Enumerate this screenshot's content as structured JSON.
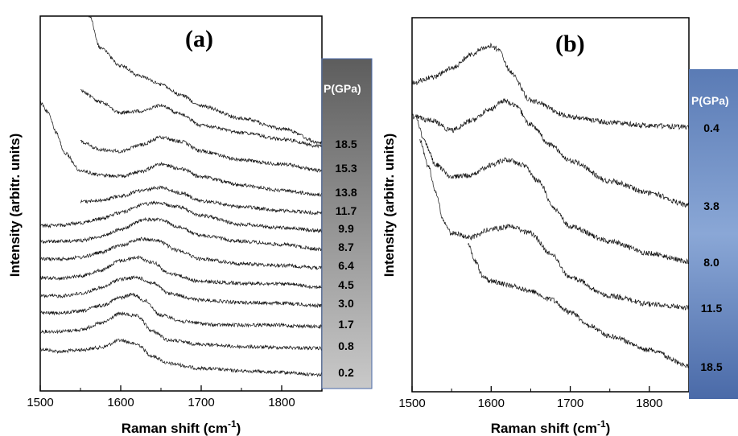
{
  "chart_data": [
    {
      "type": "line",
      "panel_label": "(a)",
      "xlabel": "Raman shift (cm",
      "xlabel_sup": "-1",
      "xlabel_end": ")",
      "ylabel": "Intensity (arbitr. units)",
      "xlim": [
        1500,
        1850
      ],
      "x_ticks": [
        "1500",
        "1600",
        "1700",
        "1800"
      ],
      "pressure_header": "P(GPa)",
      "legend_style": "gradient-bar-right",
      "series": [
        {
          "name": "0.2",
          "x": [
            1500,
            1525,
            1550,
            1575,
            1600,
            1620,
            1640,
            1660,
            1700,
            1750,
            1800,
            1850
          ],
          "y": [
            434,
            437,
            435,
            432,
            423,
            428,
            443,
            452,
            458,
            461,
            463,
            466
          ]
        },
        {
          "name": "0.8",
          "x": [
            1500,
            1525,
            1550,
            1575,
            1600,
            1620,
            1640,
            1660,
            1700,
            1750,
            1800,
            1850
          ],
          "y": [
            412,
            412,
            410,
            402,
            390,
            393,
            412,
            423,
            428,
            431,
            432,
            433
          ]
        },
        {
          "name": "1.7",
          "x": [
            1500,
            1525,
            1550,
            1575,
            1600,
            1615,
            1630,
            1650,
            1680,
            1720,
            1780,
            1850
          ],
          "y": [
            389,
            389,
            387,
            380,
            370,
            366,
            374,
            392,
            400,
            404,
            404,
            406
          ]
        },
        {
          "name": "3.0",
          "x": [
            1500,
            1525,
            1550,
            1575,
            1600,
            1620,
            1640,
            1660,
            1700,
            1750,
            1800,
            1850
          ],
          "y": [
            368,
            368,
            365,
            358,
            347,
            345,
            352,
            365,
            373,
            376,
            377,
            380
          ]
        },
        {
          "name": "4.5",
          "x": [
            1500,
            1525,
            1550,
            1575,
            1600,
            1620,
            1640,
            1660,
            1700,
            1750,
            1800,
            1850
          ],
          "y": [
            345,
            346,
            343,
            336,
            324,
            320,
            326,
            340,
            350,
            352,
            353,
            357
          ]
        },
        {
          "name": "6.4",
          "x": [
            1500,
            1525,
            1550,
            1575,
            1600,
            1625,
            1645,
            1670,
            1700,
            1750,
            1800,
            1850
          ],
          "y": [
            322,
            322,
            320,
            314,
            305,
            297,
            299,
            311,
            322,
            328,
            330,
            333
          ]
        },
        {
          "name": "8.7",
          "x": [
            1500,
            1525,
            1550,
            1575,
            1600,
            1630,
            1650,
            1670,
            1700,
            1750,
            1800,
            1850
          ],
          "y": [
            300,
            300,
            299,
            294,
            285,
            273,
            273,
            282,
            293,
            300,
            304,
            310
          ]
        },
        {
          "name": "9.9",
          "x": [
            1500,
            1525,
            1550,
            1575,
            1600,
            1630,
            1645,
            1670,
            1700,
            1750,
            1800,
            1850
          ],
          "y": [
            281,
            280,
            277,
            272,
            264,
            254,
            252,
            257,
            268,
            279,
            283,
            287
          ]
        },
        {
          "name": "11.7",
          "x": [
            1550,
            1575,
            1600,
            1625,
            1650,
            1675,
            1700,
            1750,
            1800,
            1850
          ],
          "y": [
            251,
            249,
            244,
            237,
            233,
            240,
            250,
            257,
            262,
            265
          ]
        },
        {
          "name": "13.8",
          "x": [
            1500,
            1510,
            1520,
            1530,
            1550,
            1575,
            1600,
            1625,
            1650,
            1675,
            1700,
            1750,
            1800,
            1850
          ],
          "y": [
            128,
            140,
            165,
            190,
            212,
            218,
            219,
            213,
            204,
            210,
            220,
            230,
            237,
            242
          ]
        },
        {
          "name": "15.3",
          "x": [
            1550,
            1575,
            1600,
            1625,
            1650,
            1675,
            1700,
            1750,
            1800,
            1850
          ],
          "y": [
            176,
            186,
            188,
            180,
            171,
            176,
            188,
            199,
            204,
            212
          ]
        },
        {
          "name": "18.5",
          "x": [
            1550,
            1575,
            1600,
            1625,
            1650,
            1675,
            1700,
            1750,
            1800,
            1850
          ],
          "y": [
            113,
            127,
            140,
            138,
            131,
            142,
            156,
            165,
            173,
            182
          ]
        },
        {
          "name": "",
          "x": [
            1560,
            1575,
            1600,
            1625,
            1650,
            1675,
            1700,
            1750,
            1800,
            1850
          ],
          "y": [
            18,
            60,
            82,
            95,
            105,
            118,
            132,
            147,
            160,
            178
          ]
        }
      ]
    },
    {
      "type": "line",
      "panel_label": "(b)",
      "xlabel": "Raman shift (cm",
      "xlabel_sup": "-1",
      "xlabel_end": ")",
      "ylabel": "Intensity (arbitr. units)",
      "xlim": [
        1500,
        1850
      ],
      "x_ticks": [
        "1500",
        "1600",
        "1700",
        "1800"
      ],
      "pressure_header": "P(GPa)",
      "legend_style": "gradient-bar-right",
      "series": [
        {
          "name": "0.4",
          "x": [
            1500,
            1525,
            1550,
            1575,
            1590,
            1600,
            1610,
            1625,
            1650,
            1700,
            1750,
            1800,
            1850
          ],
          "y": [
            103,
            96,
            85,
            68,
            60,
            57,
            62,
            90,
            125,
            145,
            152,
            156,
            158
          ]
        },
        {
          "name": "3.8",
          "x": [
            1500,
            1525,
            1550,
            1575,
            1600,
            1615,
            1630,
            1650,
            1675,
            1700,
            1750,
            1800,
            1850
          ],
          "y": [
            145,
            150,
            162,
            150,
            135,
            125,
            130,
            155,
            180,
            200,
            225,
            240,
            255
          ]
        },
        {
          "name": "8.0",
          "x": [
            1505,
            1515,
            1530,
            1550,
            1575,
            1600,
            1620,
            1640,
            1660,
            1680,
            1700,
            1750,
            1800,
            1850
          ],
          "y": [
            145,
            175,
            205,
            220,
            218,
            205,
            198,
            205,
            225,
            260,
            282,
            300,
            315,
            325
          ]
        },
        {
          "name": "11.5",
          "x": [
            1510,
            1520,
            1530,
            1540,
            1550,
            1575,
            1600,
            1625,
            1650,
            1675,
            1700,
            1750,
            1800,
            1850
          ],
          "y": [
            175,
            205,
            240,
            275,
            290,
            295,
            285,
            282,
            290,
            315,
            345,
            368,
            378,
            382
          ]
        },
        {
          "name": "18.5",
          "x": [
            1570,
            1580,
            1590,
            1600,
            1625,
            1650,
            1675,
            1700,
            1725,
            1750,
            1800,
            1850
          ],
          "y": [
            302,
            325,
            345,
            350,
            355,
            362,
            372,
            388,
            405,
            418,
            435,
            455
          ]
        }
      ]
    }
  ]
}
